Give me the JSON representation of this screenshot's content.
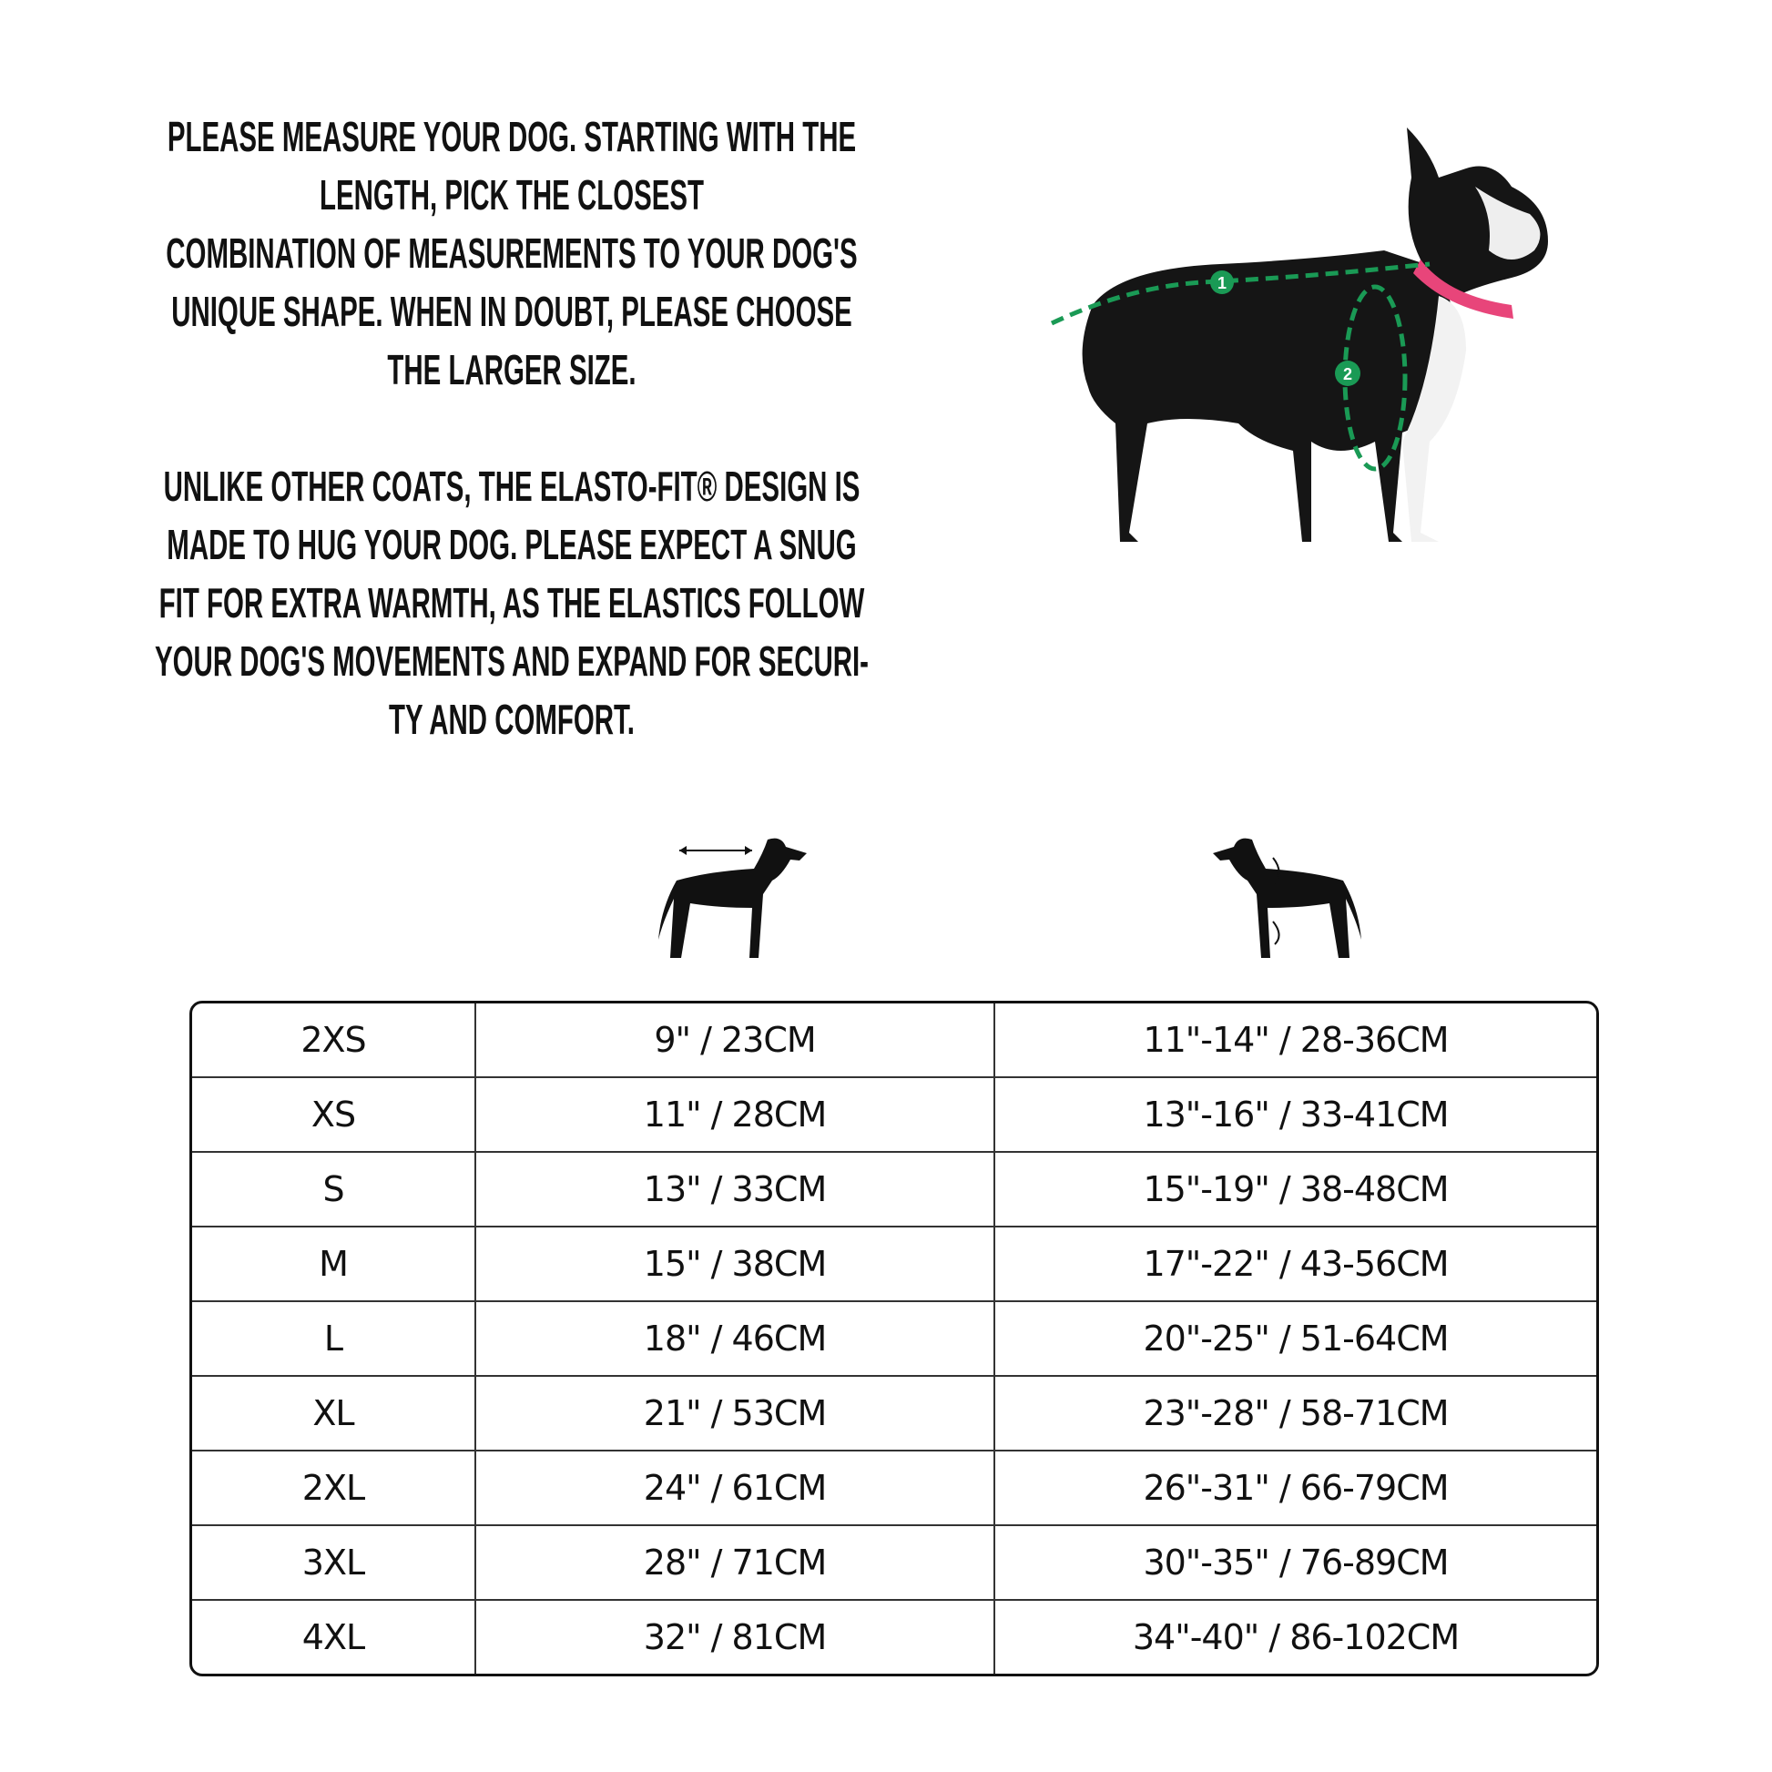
{
  "intro": {
    "paragraph1": "PLEASE MEASURE YOUR DOG. STARTING WITH THE\nLENGTH, PICK THE CLOSEST\nCOMBINATION OF MEASUREMENTS TO YOUR DOG'S\nUNIQUE SHAPE. WHEN IN DOUBT, PLEASE CHOOSE\nTHE LARGER SIZE.",
    "paragraph2": "UNLIKE OTHER COATS, THE ELASTO-FIT® DESIGN IS\nMADE TO HUG YOUR DOG. PLEASE EXPECT A SNUG\nFIT FOR EXTRA WARMTH, AS THE ELASTICS FOLLOW\nYOUR DOG'S MOVEMENTS AND EXPAND FOR SECURI-\nTY AND COMFORT."
  },
  "photo": {
    "marker1": "1",
    "marker2": "2",
    "accent": "#1a9a55",
    "collar": "#e8457a"
  },
  "icons": [
    "dog-length-icon",
    "dog-chest-icon"
  ],
  "table": {
    "rows": [
      [
        "2XS",
        "9\" / 23CM",
        "11\"-14\" / 28-36CM"
      ],
      [
        "XS",
        "11\" / 28CM",
        "13\"-16\" / 33-41CM"
      ],
      [
        "S",
        "13\" / 33CM",
        "15\"-19\" / 38-48CM"
      ],
      [
        "M",
        "15\" / 38CM",
        "17\"-22\" / 43-56CM"
      ],
      [
        "L",
        "18\" / 46CM",
        "20\"-25\" / 51-64CM"
      ],
      [
        "XL",
        "21\" / 53CM",
        "23\"-28\" / 58-71CM"
      ],
      [
        "2XL",
        "24\" / 61CM",
        "26\"-31\" / 66-79CM"
      ],
      [
        "3XL",
        "28\" / 71CM",
        "30\"-35\" / 76-89CM"
      ],
      [
        "4XL",
        "32\" / 81CM",
        "34\"-40\" / 86-102CM"
      ]
    ]
  }
}
